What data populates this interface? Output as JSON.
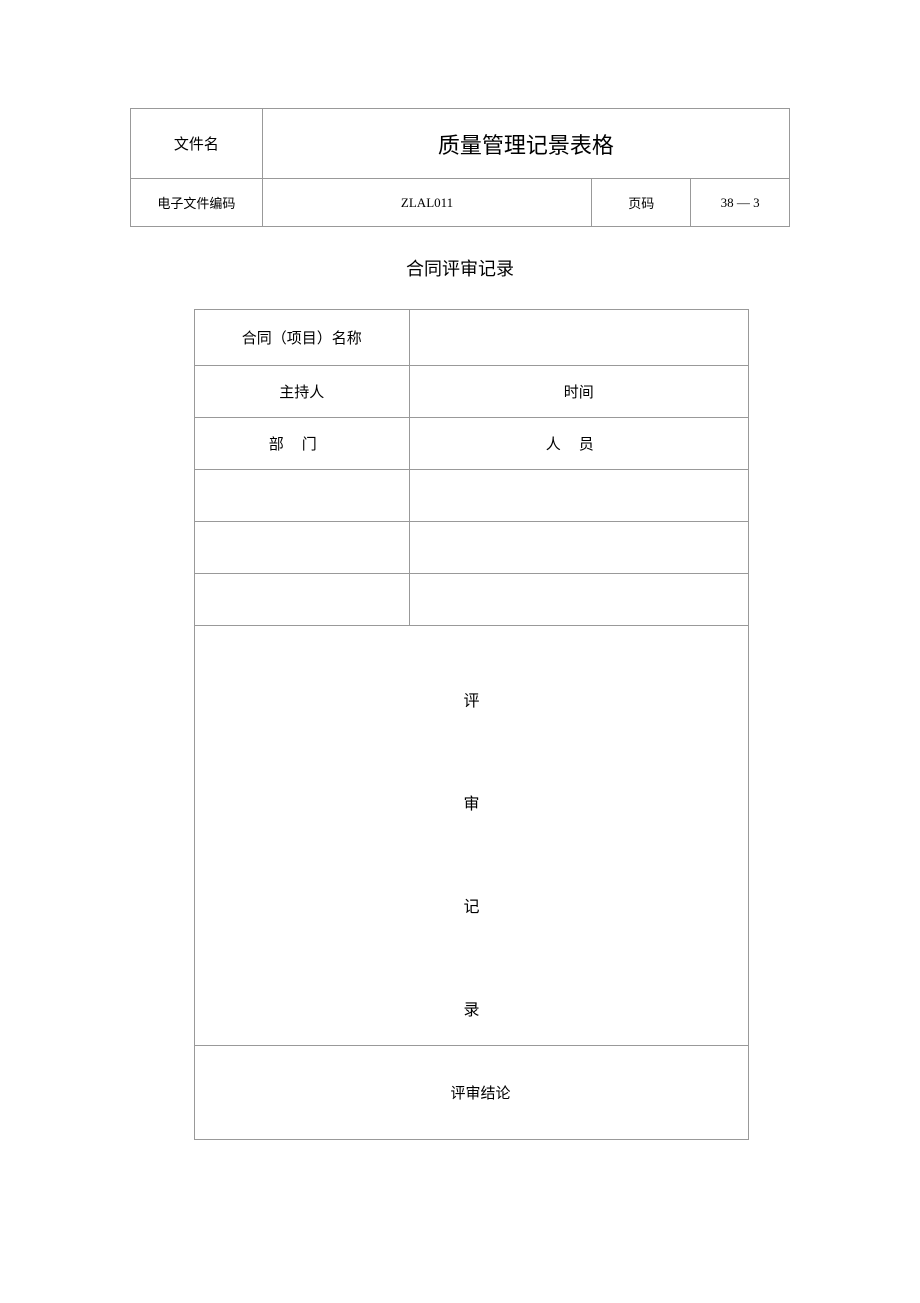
{
  "header": {
    "file_name_label": "文件名",
    "form_title": "质量管理记景表格",
    "code_label": "电子文件编码",
    "code_value": "ZLAL011",
    "page_label": "页码",
    "page_value": "38 — 3"
  },
  "section_title": "合同评审记录",
  "form": {
    "contract_name_label": "合同（项目）名称",
    "contract_name_value": "",
    "host_label": "主持人",
    "time_label": "时间",
    "department_label": "部门",
    "personnel_label": "人员",
    "review_record_chars": [
      "评",
      "审",
      "记",
      "录"
    ],
    "conclusion_label": "评审结论",
    "conclusion_value": ""
  },
  "styling": {
    "border_color": "#999999",
    "background_color": "#ffffff",
    "text_color": "#000000",
    "title_fontsize": 22,
    "label_fontsize": 15,
    "small_label_fontsize": 13,
    "section_title_fontsize": 18
  }
}
